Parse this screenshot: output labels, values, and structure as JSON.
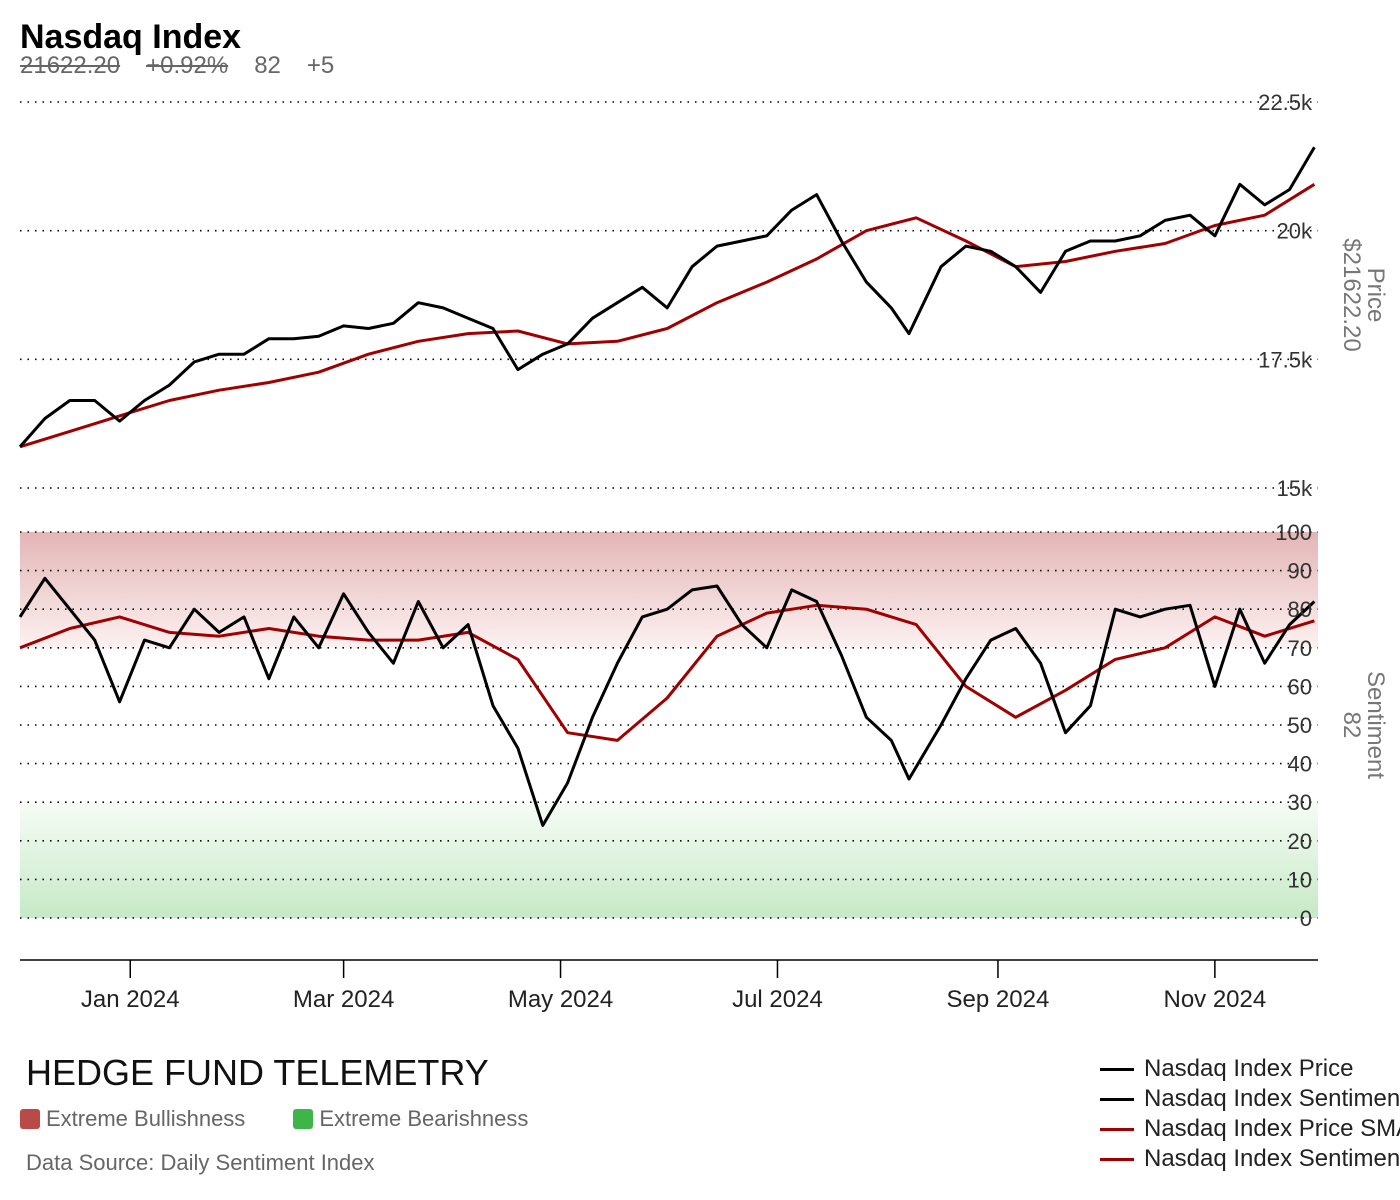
{
  "header": {
    "title": "Nasdaq Index",
    "price": "21622.20",
    "price_change": "+0.92%",
    "sentiment": "82",
    "sentiment_change": "+5"
  },
  "footer": {
    "brand": "HEDGE FUND TELEMETRY",
    "bull_label": "Extreme Bullishness",
    "bear_label": "Extreme Bearishness",
    "bull_color": "#b94a48",
    "bear_color": "#3db54a",
    "source": "Data Source: Daily Sentiment Index"
  },
  "legend": [
    {
      "label": "Nasdaq Index Price",
      "color": "#000000"
    },
    {
      "label": "Nasdaq Index Sentiment",
      "color": "#000000"
    },
    {
      "label": "Nasdaq Index Price SMA",
      "color": "#a00000"
    },
    {
      "label": "Nasdaq Index Sentiment SMA",
      "color": "#a00000"
    }
  ],
  "chart_data": [
    {
      "type": "line",
      "ylabel": "Price",
      "ylabel_value": "$21622.20",
      "ylim": [
        15000,
        22500
      ],
      "yticks": [
        "15k",
        "17.5k",
        "20k",
        "22.5k"
      ],
      "ytick_values": [
        15000,
        17500,
        20000,
        22500
      ],
      "xlim": [
        "2023-12-01",
        "2024-11-30"
      ],
      "xticks": [
        {
          "date": "2024-01-01",
          "label": "Jan 2024"
        },
        {
          "date": "2024-03-01",
          "label": "Mar 2024"
        },
        {
          "date": "2024-05-01",
          "label": "May 2024"
        },
        {
          "date": "2024-07-01",
          "label": "Jul 2024"
        },
        {
          "date": "2024-09-01",
          "label": "Sep 2024"
        },
        {
          "date": "2024-11-01",
          "label": "Nov 2024"
        }
      ],
      "grid": true,
      "series": [
        {
          "name": "Nasdaq Index Price",
          "color": "#000000",
          "x": [
            "2023-12-01",
            "2023-12-08",
            "2023-12-15",
            "2023-12-22",
            "2023-12-29",
            "2024-01-05",
            "2024-01-12",
            "2024-01-19",
            "2024-01-26",
            "2024-02-02",
            "2024-02-09",
            "2024-02-16",
            "2024-02-23",
            "2024-03-01",
            "2024-03-08",
            "2024-03-15",
            "2024-03-22",
            "2024-03-29",
            "2024-04-05",
            "2024-04-12",
            "2024-04-19",
            "2024-04-26",
            "2024-05-03",
            "2024-05-10",
            "2024-05-17",
            "2024-05-24",
            "2024-05-31",
            "2024-06-07",
            "2024-06-14",
            "2024-06-21",
            "2024-06-28",
            "2024-07-05",
            "2024-07-12",
            "2024-07-19",
            "2024-07-26",
            "2024-08-02",
            "2024-08-07",
            "2024-08-16",
            "2024-08-23",
            "2024-08-30",
            "2024-09-06",
            "2024-09-13",
            "2024-09-20",
            "2024-09-27",
            "2024-10-04",
            "2024-10-11",
            "2024-10-18",
            "2024-10-25",
            "2024-11-01",
            "2024-11-08",
            "2024-11-15",
            "2024-11-22",
            "2024-11-29"
          ],
          "y": [
            15800,
            16350,
            16700,
            16700,
            16300,
            16700,
            17000,
            17450,
            17600,
            17600,
            17900,
            17900,
            17950,
            18150,
            18100,
            18200,
            18600,
            18500,
            18300,
            18100,
            17300,
            17600,
            17800,
            18300,
            18600,
            18900,
            18500,
            19300,
            19700,
            19800,
            19900,
            20400,
            20700,
            19800,
            19000,
            18500,
            18000,
            19300,
            19700,
            19600,
            19300,
            18800,
            19600,
            19800,
            19800,
            19900,
            20200,
            20300,
            19900,
            20900,
            20500,
            20800,
            21622
          ]
        },
        {
          "name": "Nasdaq Index Price SMA",
          "color": "#a00000",
          "x": [
            "2023-12-01",
            "2023-12-15",
            "2023-12-29",
            "2024-01-12",
            "2024-01-26",
            "2024-02-09",
            "2024-02-23",
            "2024-03-08",
            "2024-03-22",
            "2024-04-05",
            "2024-04-19",
            "2024-05-03",
            "2024-05-17",
            "2024-05-31",
            "2024-06-14",
            "2024-06-28",
            "2024-07-12",
            "2024-07-26",
            "2024-08-09",
            "2024-08-23",
            "2024-09-06",
            "2024-09-20",
            "2024-10-04",
            "2024-10-18",
            "2024-11-01",
            "2024-11-15",
            "2024-11-29"
          ],
          "y": [
            15800,
            16100,
            16400,
            16700,
            16900,
            17050,
            17250,
            17600,
            17850,
            18000,
            18050,
            17800,
            17850,
            18100,
            18600,
            19000,
            19450,
            20000,
            20250,
            19800,
            19300,
            19400,
            19600,
            19750,
            20100,
            20300,
            20900
          ]
        }
      ]
    },
    {
      "type": "line",
      "ylabel": "Sentiment",
      "ylabel_value": "82",
      "ylim": [
        0,
        100
      ],
      "yticks": [
        "0",
        "10",
        "20",
        "30",
        "40",
        "50",
        "60",
        "70",
        "80",
        "90",
        "100"
      ],
      "ytick_values": [
        0,
        10,
        20,
        30,
        40,
        50,
        60,
        70,
        80,
        90,
        100
      ],
      "bands": [
        {
          "name": "Extreme Bullishness",
          "from": 70,
          "to": 100,
          "color": "#b94a48"
        },
        {
          "name": "Extreme Bearishness",
          "from": 0,
          "to": 30,
          "color": "#3db54a"
        }
      ],
      "grid": true,
      "series": [
        {
          "name": "Nasdaq Index Sentiment",
          "color": "#000000",
          "x": [
            "2023-12-01",
            "2023-12-08",
            "2023-12-15",
            "2023-12-22",
            "2023-12-29",
            "2024-01-05",
            "2024-01-12",
            "2024-01-19",
            "2024-01-26",
            "2024-02-02",
            "2024-02-09",
            "2024-02-16",
            "2024-02-23",
            "2024-03-01",
            "2024-03-08",
            "2024-03-15",
            "2024-03-22",
            "2024-03-29",
            "2024-04-05",
            "2024-04-12",
            "2024-04-19",
            "2024-04-26",
            "2024-05-03",
            "2024-05-10",
            "2024-05-17",
            "2024-05-24",
            "2024-05-31",
            "2024-06-07",
            "2024-06-14",
            "2024-06-21",
            "2024-06-28",
            "2024-07-05",
            "2024-07-12",
            "2024-07-19",
            "2024-07-26",
            "2024-08-02",
            "2024-08-07",
            "2024-08-16",
            "2024-08-23",
            "2024-08-30",
            "2024-09-06",
            "2024-09-13",
            "2024-09-20",
            "2024-09-27",
            "2024-10-04",
            "2024-10-11",
            "2024-10-18",
            "2024-10-25",
            "2024-11-01",
            "2024-11-08",
            "2024-11-15",
            "2024-11-22",
            "2024-11-29"
          ],
          "y": [
            78,
            88,
            80,
            72,
            56,
            72,
            70,
            80,
            74,
            78,
            62,
            78,
            70,
            84,
            74,
            66,
            82,
            70,
            76,
            55,
            44,
            24,
            35,
            52,
            66,
            78,
            80,
            85,
            86,
            76,
            70,
            85,
            82,
            68,
            52,
            46,
            36,
            50,
            62,
            72,
            75,
            66,
            48,
            55,
            80,
            78,
            80,
            81,
            60,
            80,
            66,
            76,
            82
          ]
        },
        {
          "name": "Nasdaq Index Sentiment SMA",
          "color": "#a00000",
          "x": [
            "2023-12-01",
            "2023-12-15",
            "2023-12-29",
            "2024-01-12",
            "2024-01-26",
            "2024-02-09",
            "2024-02-23",
            "2024-03-08",
            "2024-03-22",
            "2024-04-05",
            "2024-04-19",
            "2024-05-03",
            "2024-05-17",
            "2024-05-31",
            "2024-06-14",
            "2024-06-28",
            "2024-07-12",
            "2024-07-26",
            "2024-08-09",
            "2024-08-23",
            "2024-09-06",
            "2024-09-20",
            "2024-10-04",
            "2024-10-18",
            "2024-11-01",
            "2024-11-15",
            "2024-11-29"
          ],
          "y": [
            70,
            75,
            78,
            74,
            73,
            75,
            73,
            72,
            72,
            74,
            67,
            48,
            46,
            57,
            73,
            79,
            81,
            80,
            76,
            60,
            52,
            59,
            67,
            70,
            78,
            73,
            77
          ]
        }
      ]
    }
  ]
}
